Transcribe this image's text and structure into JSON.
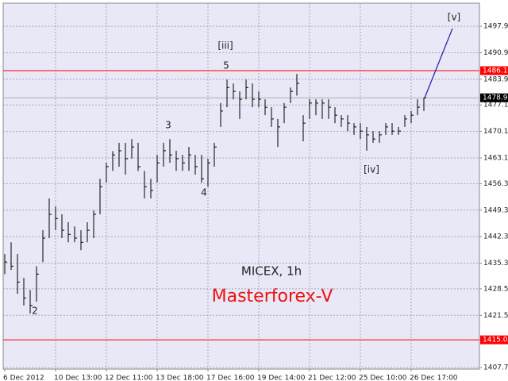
{
  "chart_data": {
    "type": "ohlc",
    "title": "MICEX, 1h",
    "watermark": "Masterforex-V",
    "watermark_color": "#ee1111",
    "categories": [
      "6 Dec 2012",
      null,
      null,
      null,
      null,
      null,
      null,
      null,
      "10 Dec 13:00",
      null,
      null,
      null,
      null,
      null,
      null,
      null,
      "12 Dec 11:00",
      null,
      null,
      null,
      null,
      null,
      null,
      null,
      "13 Dec 18:00",
      null,
      null,
      null,
      null,
      null,
      null,
      null,
      "17 Dec 16:00",
      null,
      null,
      null,
      null,
      null,
      null,
      null,
      "19 Dec 14:00",
      null,
      null,
      null,
      null,
      null,
      null,
      null,
      "21 Dec 12:00",
      null,
      null,
      null,
      null,
      null,
      null,
      null,
      "25 Dec 10:00",
      null,
      null,
      null,
      null,
      null,
      null,
      null,
      "26 Dec 17:00",
      null,
      null
    ],
    "high": [
      1437.7,
      1440.8,
      1437.7,
      1431.4,
      1428.2,
      1434.5,
      1444.0,
      1452.4,
      1450.3,
      1448.2,
      1446.1,
      1445.0,
      1444.0,
      1446.1,
      1449.2,
      1457.6,
      1461.8,
      1464.9,
      1467.1,
      1467.1,
      1468.1,
      1467.1,
      1459.7,
      1457.6,
      1463.9,
      1467.1,
      1468.1,
      1465.0,
      1463.9,
      1466.0,
      1463.9,
      1463.9,
      1462.9,
      1467.1,
      1477.6,
      1483.8,
      1482.8,
      1480.7,
      1483.8,
      1482.8,
      1480.7,
      1478.6,
      1476.5,
      1473.4,
      1477.6,
      1481.7,
      1485.3,
      1474.4,
      1478.6,
      1478.6,
      1478.6,
      1478.6,
      1476.5,
      1474.4,
      1474.4,
      1472.3,
      1472.3,
      1471.3,
      1470.2,
      1470.2,
      1472.3,
      1472.3,
      1471.3,
      1474.4,
      1475.5,
      1478.6,
      1479.0
    ],
    "low": [
      1432.4,
      1433.5,
      1427.2,
      1424.1,
      1422.0,
      1425.1,
      1435.6,
      1441.9,
      1444.0,
      1441.9,
      1440.8,
      1440.8,
      1438.7,
      1440.8,
      1441.9,
      1448.2,
      1456.6,
      1459.7,
      1460.8,
      1458.7,
      1462.9,
      1459.7,
      1452.4,
      1452.4,
      1456.6,
      1460.8,
      1461.8,
      1459.7,
      1459.7,
      1459.7,
      1458.7,
      1456.6,
      1455.5,
      1460.8,
      1471.3,
      1476.5,
      1478.6,
      1473.4,
      1478.6,
      1476.5,
      1476.5,
      1474.4,
      1471.3,
      1466.0,
      1472.3,
      1477.6,
      1479.6,
      1467.5,
      1473.4,
      1474.4,
      1473.4,
      1473.4,
      1472.3,
      1471.3,
      1470.2,
      1469.2,
      1468.1,
      1465.0,
      1467.1,
      1467.1,
      1469.2,
      1469.2,
      1469.2,
      1471.3,
      1472.3,
      1474.4,
      1475.5
    ],
    "close": [
      1435.6,
      1434.5,
      1430.3,
      1426.1,
      1424.1,
      1432.4,
      1441.9,
      1448.2,
      1447.1,
      1444.0,
      1442.9,
      1441.9,
      1440.8,
      1444.0,
      1448.2,
      1455.5,
      1460.8,
      1463.9,
      1465.0,
      1462.9,
      1466.0,
      1460.8,
      1455.5,
      1454.5,
      1461.8,
      1465.0,
      1463.9,
      1462.9,
      1461.8,
      1463.9,
      1460.8,
      1457.6,
      1461.8,
      1466.0,
      1475.5,
      1481.7,
      1480.7,
      1478.6,
      1481.7,
      1478.6,
      1478.6,
      1476.5,
      1473.4,
      1471.3,
      1476.5,
      1480.7,
      1482.8,
      1472.3,
      1477.6,
      1477.6,
      1477.6,
      1476.5,
      1474.4,
      1473.4,
      1472.3,
      1471.3,
      1470.2,
      1469.2,
      1468.1,
      1469.2,
      1471.3,
      1470.2,
      1470.2,
      1473.4,
      1474.4,
      1476.5,
      1478.99
    ],
    "color": "#000000",
    "ylim": [
      1407.3,
      1504.0
    ],
    "yticks": [
      {
        "value": 1407.7,
        "label": "1407.70"
      },
      {
        "value": 1421.5,
        "label": "1421.50"
      },
      {
        "value": 1428.5,
        "label": "1428.50"
      },
      {
        "value": 1435.3,
        "label": "1435.30"
      },
      {
        "value": 1442.3,
        "label": "1442.30"
      },
      {
        "value": 1449.3,
        "label": "1449.30"
      },
      {
        "value": 1456.3,
        "label": "1456.30"
      },
      {
        "value": 1463.1,
        "label": "1463.10"
      },
      {
        "value": 1470.1,
        "label": "1470.10"
      },
      {
        "value": 1477.1,
        "label": "1477.10"
      },
      {
        "value": 1483.9,
        "label": "1483.90"
      },
      {
        "value": 1490.9,
        "label": "1490.90"
      },
      {
        "value": 1497.9,
        "label": "1497.90"
      }
    ],
    "grid": true,
    "hlines": [
      {
        "value": 1486.17,
        "color": "#ff0000",
        "label_bg": "#ff0000"
      },
      {
        "value": 1415.03,
        "color": "#ff0000",
        "label_bg": "#ff0000"
      },
      {
        "value": 1478.99,
        "color": "#b0b0b0",
        "label_bg": "#000000"
      }
    ],
    "projection": {
      "color": "#1a1aa8",
      "values": [
        1478.99,
        1497.3
      ]
    },
    "annotations": [
      "2",
      "3",
      "4",
      "5",
      "[iii]",
      "[iv]",
      "[v]"
    ]
  }
}
